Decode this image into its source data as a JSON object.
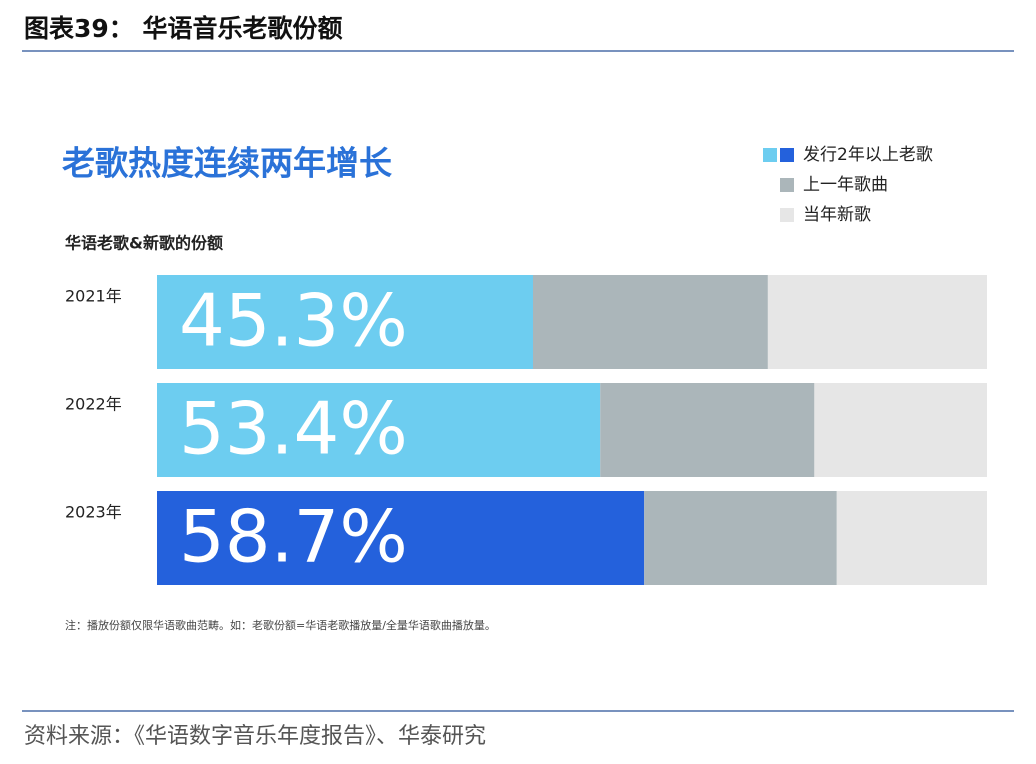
{
  "header": {
    "title": "图表39： 华语音乐老歌份额"
  },
  "footer": {
    "source": "资料来源：《华语数字音乐年度报告》、华泰研究"
  },
  "chart_data": {
    "type": "stacked_bar_horizontal",
    "title": "老歌热度连续两年增长",
    "subtitle": "华语老歌&新歌的份额",
    "note": "注：播放份额仅限华语歌曲范畴。如：老歌份额=华语老歌播放量/全量华语歌曲播放量。",
    "categories": [
      "2021年",
      "2022年",
      "2023年"
    ],
    "xlim": [
      0,
      100
    ],
    "series": [
      {
        "name": "发行2年以上老歌",
        "colors": [
          "#6dcdf0",
          "#6dcdf0",
          "#2461dc"
        ],
        "values": [
          45.3,
          53.4,
          58.7
        ],
        "value_labels": [
          "45.3%",
          "53.4%",
          "58.7%"
        ]
      },
      {
        "name": "上一年歌曲",
        "color": "#abb6ba",
        "values": [
          28.3,
          25.8,
          23.2
        ]
      },
      {
        "name": "当年新歌",
        "color": "#e6e6e6",
        "values": [
          26.4,
          20.8,
          18.1
        ]
      }
    ]
  }
}
